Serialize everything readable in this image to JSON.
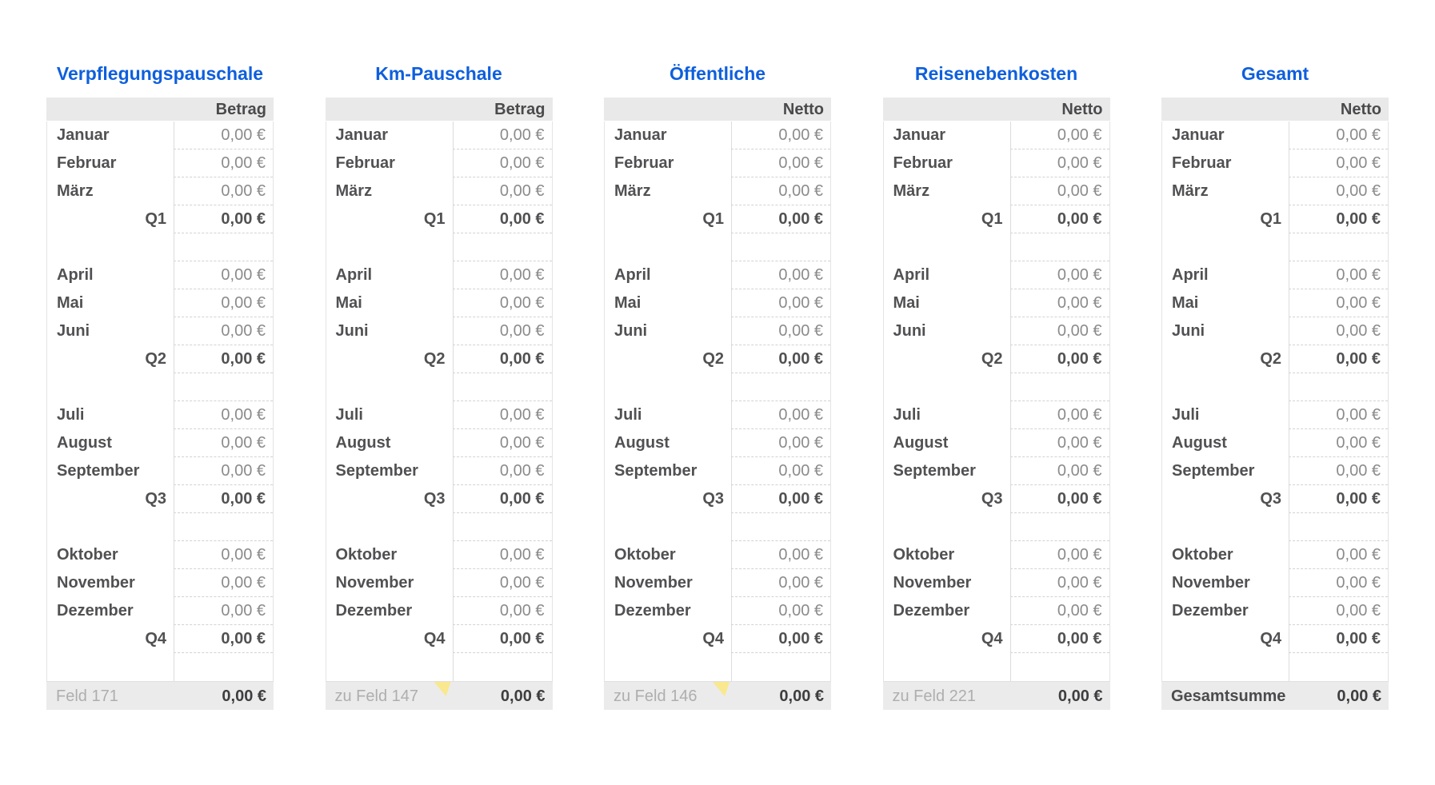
{
  "accent_color": "#0e5fdd",
  "flag_color": "#f9e88e",
  "currency_zero": "0,00 €",
  "rows": [
    {
      "type": "month",
      "label": "Januar",
      "value": "0,00 €"
    },
    {
      "type": "month",
      "label": "Februar",
      "value": "0,00 €"
    },
    {
      "type": "month",
      "label": "März",
      "value": "0,00 €"
    },
    {
      "type": "quarter",
      "label": "Q1",
      "value": "0,00 €"
    },
    {
      "type": "spacer",
      "label": "",
      "value": ""
    },
    {
      "type": "month",
      "label": "April",
      "value": "0,00 €"
    },
    {
      "type": "month",
      "label": "Mai",
      "value": "0,00 €"
    },
    {
      "type": "month",
      "label": "Juni",
      "value": "0,00 €"
    },
    {
      "type": "quarter",
      "label": "Q2",
      "value": "0,00 €"
    },
    {
      "type": "spacer",
      "label": "",
      "value": ""
    },
    {
      "type": "month",
      "label": "Juli",
      "value": "0,00 €"
    },
    {
      "type": "month",
      "label": "August",
      "value": "0,00 €"
    },
    {
      "type": "month",
      "label": "September",
      "value": "0,00 €"
    },
    {
      "type": "quarter",
      "label": "Q3",
      "value": "0,00 €"
    },
    {
      "type": "spacer",
      "label": "",
      "value": ""
    },
    {
      "type": "month",
      "label": "Oktober",
      "value": "0,00 €"
    },
    {
      "type": "month",
      "label": "November",
      "value": "0,00 €"
    },
    {
      "type": "month",
      "label": "Dezember",
      "value": "0,00 €"
    },
    {
      "type": "quarter",
      "label": "Q4",
      "value": "0,00 €"
    },
    {
      "type": "spacer",
      "label": "",
      "value": ""
    }
  ],
  "tables": [
    {
      "title": "Verpflegungspauschale",
      "value_header": "Betrag",
      "footer": {
        "label": "Feld 171",
        "value": "0,00 €",
        "bold_label": false,
        "flag": false
      }
    },
    {
      "title": "Km-Pauschale",
      "value_header": "Betrag",
      "footer": {
        "label": "zu Feld 147",
        "value": "0,00 €",
        "bold_label": false,
        "flag": true
      }
    },
    {
      "title": "Öffentliche",
      "value_header": "Netto",
      "footer": {
        "label": "zu Feld 146",
        "value": "0,00 €",
        "bold_label": false,
        "flag": true
      }
    },
    {
      "title": "Reisenebenkosten",
      "value_header": "Netto",
      "footer": {
        "label": "zu Feld 221",
        "value": "0,00 €",
        "bold_label": false,
        "flag": false
      }
    },
    {
      "title": "Gesamt",
      "value_header": "Netto",
      "footer": {
        "label": "Gesamtsumme",
        "value": "0,00 €",
        "bold_label": true,
        "flag": false
      }
    }
  ]
}
